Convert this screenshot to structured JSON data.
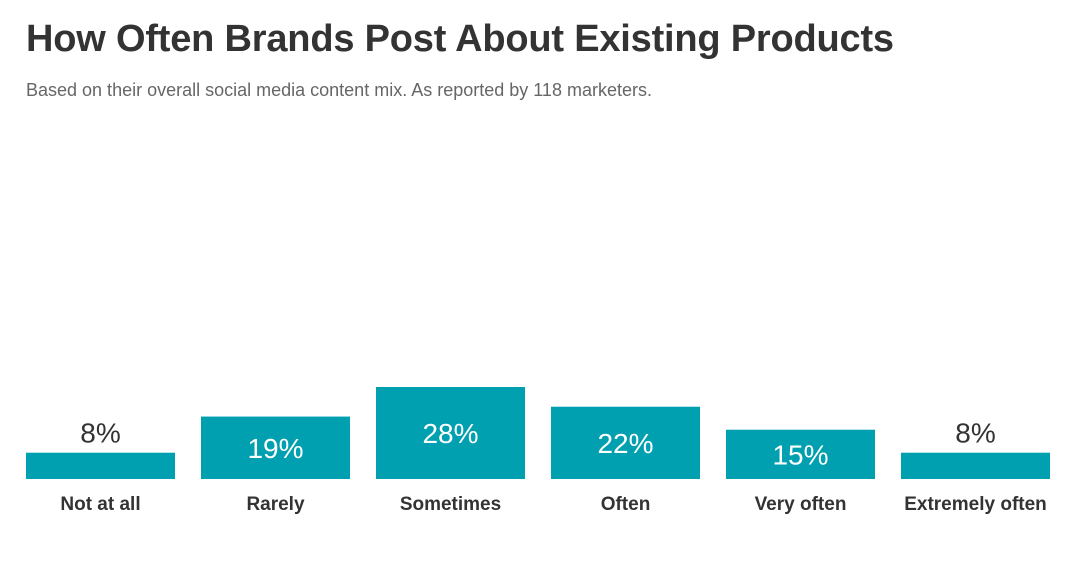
{
  "title": "How Often Brands Post About Existing Products",
  "subtitle": "Based on their overall social media content mix. As reported by 118 marketers.",
  "colors": {
    "bar": "#00a0b0",
    "label_inside": "#ffffff",
    "label_outside": "#333333",
    "text": "#333333"
  },
  "chart_data": {
    "type": "bar",
    "title": "How Often Brands Post About Existing Products",
    "subtitle": "Based on their overall social media content mix. As reported by 118 marketers.",
    "categories": [
      "Not at all",
      "Rarely",
      "Sometimes",
      "Often",
      "Very often",
      "Extremely often"
    ],
    "values": [
      8,
      19,
      28,
      22,
      15,
      8
    ],
    "labels": [
      "8%",
      "19%",
      "28%",
      "22%",
      "15%",
      "8%"
    ],
    "xlabel": "",
    "ylabel": "",
    "ylim": [
      0,
      28
    ],
    "grid": false,
    "legend": "none"
  }
}
